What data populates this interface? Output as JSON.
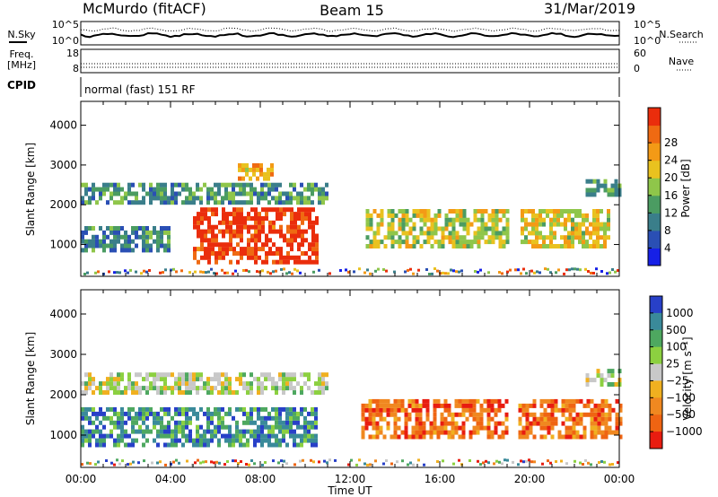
{
  "header": {
    "station": "McMurdo (fitACF)",
    "beam": "Beam 15",
    "date": "31/Mar/2019"
  },
  "noise_panel": {
    "left_label": "N.Sky",
    "right_label": "N.Search",
    "left_ticks": [
      "10^5",
      "10^0"
    ],
    "right_ticks": [
      "10^5",
      "10^0"
    ]
  },
  "freq_panel": {
    "left_label_line1": "Freq.",
    "left_label_line2": "[MHz]",
    "right_label": "Nave",
    "left_ticks": [
      "18",
      "8"
    ],
    "right_ticks": [
      "60",
      "0"
    ]
  },
  "cpid": {
    "label": "CPID",
    "mode": "normal (fast) 151 RF"
  },
  "chart_data": [
    {
      "type": "heatmap",
      "name": "power",
      "xlabel": "",
      "ylabel": "Slant Range [km]",
      "x_ticks": [
        "00:00",
        "04:00",
        "08:00",
        "12:00",
        "16:00",
        "20:00",
        "00:00"
      ],
      "y_ticks": [
        1000,
        2000,
        3000,
        4000
      ],
      "ylim": [
        200,
        4600
      ],
      "colorbar": {
        "label": "Power [dB]",
        "ticks": [
          "4",
          "8",
          "12",
          "16",
          "20",
          "24",
          "28"
        ],
        "colors": [
          "#1620e6",
          "#2a4fb4",
          "#3a7e8a",
          "#4b9c62",
          "#8fc64a",
          "#e9c21f",
          "#f39a16",
          "#ef6a12",
          "#ea2d0c"
        ]
      },
      "echo_regions": [
        {
          "t0": 0.0,
          "t1": 11.0,
          "r0": 2000,
          "r1": 2500,
          "level": 0.35,
          "note": "scattered echoes"
        },
        {
          "t0": 0.0,
          "t1": 4.0,
          "r0": 800,
          "r1": 1400,
          "level": 0.3
        },
        {
          "t0": 5.0,
          "t1": 10.6,
          "r0": 500,
          "r1": 1900,
          "level": 0.95
        },
        {
          "t0": 7.0,
          "t1": 8.5,
          "r0": 2600,
          "r1": 3000,
          "level": 0.7
        },
        {
          "t0": 12.7,
          "t1": 19.0,
          "r0": 900,
          "r1": 1800,
          "level": 0.55
        },
        {
          "t0": 19.6,
          "t1": 23.5,
          "r0": 900,
          "r1": 1800,
          "level": 0.6
        },
        {
          "t0": 22.5,
          "t1": 24.0,
          "r0": 2200,
          "r1": 2600,
          "level": 0.4
        }
      ]
    },
    {
      "type": "heatmap",
      "name": "velocity",
      "xlabel": "Time UT",
      "ylabel": "Slant Range [km]",
      "x_ticks": [
        "00:00",
        "04:00",
        "08:00",
        "12:00",
        "16:00",
        "20:00",
        "00:00"
      ],
      "y_ticks": [
        1000,
        2000,
        3000,
        4000
      ],
      "ylim": [
        200,
        4600
      ],
      "colorbar": {
        "label": "Velocity [m s⁻¹]",
        "ticks": [
          "1000",
          "500",
          "100",
          "25",
          "−25",
          "−100",
          "−500",
          "−1000"
        ],
        "colors": [
          "#2840c8",
          "#3a8a9a",
          "#4ea860",
          "#8cd040",
          "#c8c8c8",
          "#f0b020",
          "#f08820",
          "#ef6412",
          "#e81c10"
        ]
      },
      "echo_regions": [
        {
          "t0": 0.0,
          "t1": 11.0,
          "r0": 2000,
          "r1": 2500,
          "level": 0.45
        },
        {
          "t0": 0.0,
          "t1": 10.5,
          "r0": 700,
          "r1": 1600,
          "level": 0.2
        },
        {
          "t0": 12.5,
          "t1": 19.0,
          "r0": 900,
          "r1": 1800,
          "level": 0.8
        },
        {
          "t0": 19.5,
          "t1": 24.0,
          "r0": 900,
          "r1": 1800,
          "level": 0.8
        },
        {
          "t0": 22.5,
          "t1": 24.0,
          "r0": 2200,
          "r1": 2600,
          "level": 0.45
        }
      ]
    }
  ]
}
